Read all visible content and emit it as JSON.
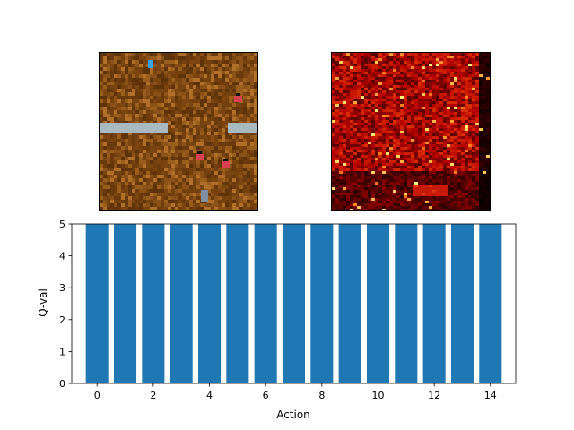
{
  "panels": {
    "game_view": {
      "description_icon": "game-frame-icon"
    },
    "saliency_view": {
      "description_icon": "heatmap-icon"
    }
  },
  "colors": {
    "bar": "#1f77b4",
    "dirt": "#7a4510",
    "wall": "#a9b9c0",
    "enemy": "#d94050",
    "player": "#3aa0e0"
  },
  "chart_data": {
    "type": "bar",
    "categories": [
      0,
      1,
      2,
      3,
      4,
      5,
      6,
      7,
      8,
      9,
      10,
      11,
      12,
      13,
      14
    ],
    "values": [
      5,
      5,
      5,
      5,
      5,
      5,
      5,
      5,
      5,
      5,
      5,
      5,
      5,
      5,
      5
    ],
    "xlabel": "Action",
    "ylabel": "Q-val",
    "xlim": [
      -0.9,
      14.9
    ],
    "ylim": [
      0,
      5
    ],
    "xticks": [
      0,
      2,
      4,
      6,
      8,
      10,
      12,
      14
    ],
    "yticks": [
      0,
      1,
      2,
      3,
      4,
      5
    ],
    "grid": false
  }
}
